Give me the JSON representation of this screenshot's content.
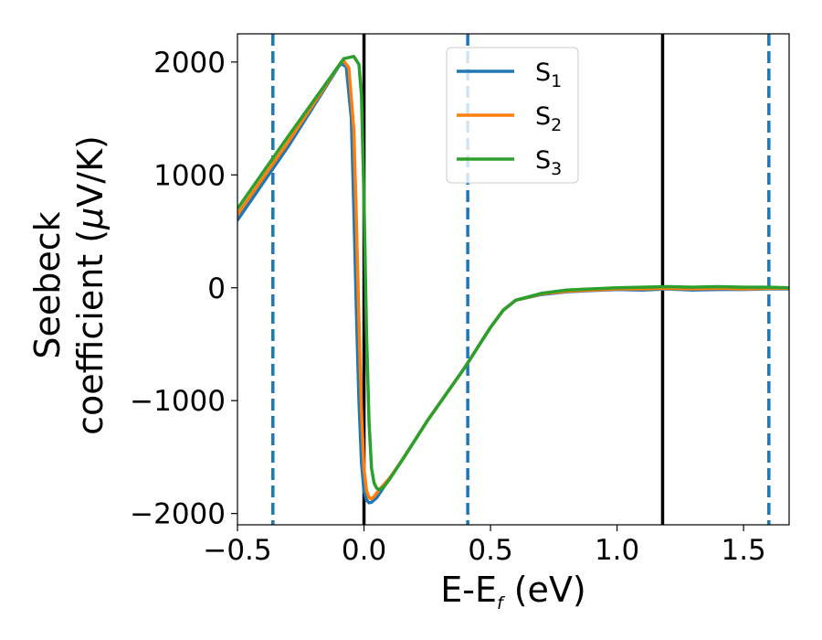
{
  "chart_data": {
    "type": "line",
    "xlabel": "E-E",
    "xlabel_sub": "f",
    "xlabel_unit": " (eV)",
    "ylabel_line1": "Seebeck",
    "ylabel_line2": "coefficient  (",
    "ylabel_mu": "μ",
    "ylabel_unit": "V/K)",
    "xlim": [
      -0.5,
      1.68
    ],
    "ylim": [
      -2100,
      2250
    ],
    "xticks": [
      -0.5,
      0.0,
      0.5,
      1.0,
      1.5
    ],
    "xtick_labels": [
      "−0.5",
      "0.0",
      "0.5",
      "1.0",
      "1.5"
    ],
    "yticks": [
      -2000,
      -1000,
      0,
      1000,
      2000
    ],
    "ytick_labels": [
      "−2000",
      "−1000",
      "0",
      "1000",
      "2000"
    ],
    "legend_position": "upper-center",
    "vlines_solid": [
      0.0,
      1.18
    ],
    "vlines_dashed": [
      -0.36,
      0.41,
      1.6
    ],
    "vline_solid_color": "#000000",
    "vline_dashed_color": "#1f77b4",
    "series": [
      {
        "name": "S",
        "name_sub": "1",
        "color": "#1f77b4",
        "x": [
          -0.5,
          -0.3,
          -0.1,
          -0.09,
          -0.07,
          -0.05,
          -0.04,
          -0.03,
          -0.02,
          -0.01,
          0.0,
          0.01,
          0.02,
          0.03,
          0.05,
          0.08,
          0.15,
          0.25,
          0.4,
          0.5,
          0.55,
          0.6,
          0.7,
          0.8,
          0.9,
          1.0,
          1.1,
          1.2,
          1.3,
          1.4,
          1.5,
          1.6,
          1.68
        ],
        "y": [
          600,
          1250,
          1960,
          1985,
          1960,
          1500,
          700,
          -200,
          -1000,
          -1550,
          -1800,
          -1880,
          -1905,
          -1900,
          -1860,
          -1760,
          -1530,
          -1180,
          -700,
          -350,
          -200,
          -110,
          -60,
          -35,
          -25,
          -15,
          -20,
          -10,
          -20,
          -15,
          -15,
          -10,
          -10
        ]
      },
      {
        "name": "S",
        "name_sub": "2",
        "color": "#ff7f0e",
        "x": [
          -0.5,
          -0.3,
          -0.09,
          -0.08,
          -0.06,
          -0.04,
          -0.03,
          -0.02,
          -0.01,
          0.0,
          0.01,
          0.02,
          0.03,
          0.04,
          0.06,
          0.1,
          0.15,
          0.25,
          0.4,
          0.5,
          0.55,
          0.6,
          0.7,
          0.8,
          0.9,
          1.0,
          1.1,
          1.2,
          1.3,
          1.4,
          1.5,
          1.6,
          1.68
        ],
        "y": [
          650,
          1290,
          2000,
          2010,
          1950,
          1400,
          600,
          -300,
          -1100,
          -1600,
          -1800,
          -1860,
          -1870,
          -1850,
          -1790,
          -1690,
          -1530,
          -1180,
          -700,
          -350,
          -200,
          -110,
          -55,
          -30,
          -20,
          -10,
          -10,
          -5,
          -10,
          -5,
          -10,
          -5,
          -5
        ]
      },
      {
        "name": "S",
        "name_sub": "3",
        "color": "#2ca02c",
        "x": [
          -0.5,
          -0.3,
          -0.08,
          -0.06,
          -0.04,
          -0.02,
          -0.01,
          0.0,
          0.01,
          0.02,
          0.03,
          0.04,
          0.05,
          0.06,
          0.08,
          0.1,
          0.15,
          0.25,
          0.4,
          0.5,
          0.55,
          0.6,
          0.7,
          0.8,
          0.9,
          1.0,
          1.1,
          1.2,
          1.3,
          1.4,
          1.5,
          1.6,
          1.68
        ],
        "y": [
          700,
          1340,
          2030,
          2040,
          2050,
          1980,
          1700,
          800,
          -400,
          -1200,
          -1600,
          -1730,
          -1775,
          -1790,
          -1760,
          -1700,
          -1530,
          -1180,
          -700,
          -350,
          -200,
          -110,
          -50,
          -20,
          -10,
          0,
          5,
          10,
          5,
          10,
          5,
          5,
          0
        ]
      }
    ]
  }
}
